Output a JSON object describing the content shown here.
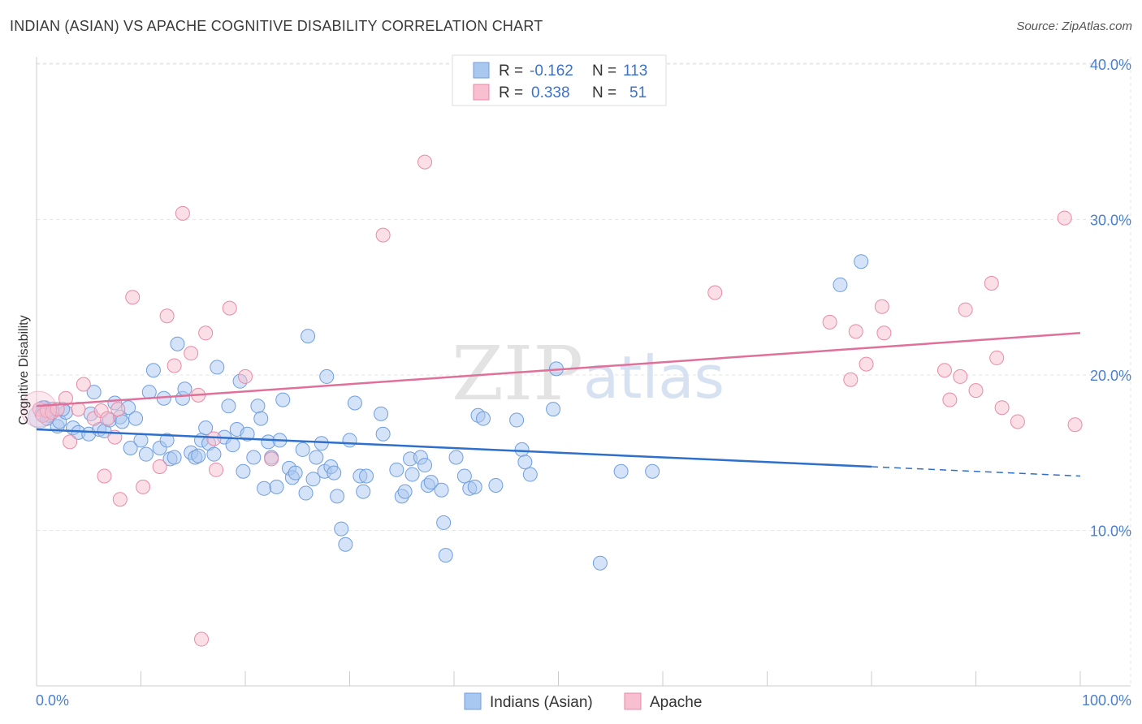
{
  "header": {
    "title": "INDIAN (ASIAN) VS APACHE COGNITIVE DISABILITY CORRELATION CHART",
    "source": "Source: ZipAtlas.com"
  },
  "watermark": {
    "zip": "ZIP",
    "atlas": "atlas"
  },
  "legend_top": {
    "rows": [
      {
        "r_label": "R =",
        "r_value": "-0.162",
        "n_label": "N =",
        "n_value": "113"
      },
      {
        "r_label": "R =",
        "r_value": "0.338",
        "n_label": "N =",
        "n_value": "51"
      }
    ]
  },
  "colors": {
    "blue_fill": "#a9c8f0",
    "blue_stroke": "#6f9ee0",
    "blue_line": "#2f6fcc",
    "pink_fill": "#f7bfd0",
    "pink_stroke": "#e88aa8",
    "pink_line": "#e0709a",
    "grid": "#e6e6e6",
    "tick_label": "#4a7fd0"
  },
  "chart_data": {
    "type": "scatter",
    "title": "INDIAN (ASIAN) VS APACHE COGNITIVE DISABILITY CORRELATION CHART",
    "xlabel": "",
    "ylabel": "Cognitive Disability",
    "xlim": [
      0,
      100
    ],
    "ylim": [
      0,
      42
    ],
    "x_tick_labels": [
      "0.0%",
      "100.0%"
    ],
    "y_ticks": [
      10,
      20,
      30,
      40
    ],
    "y_tick_labels": [
      "10.0%",
      "20.0%",
      "30.0%",
      "40.0%"
    ],
    "grid": true,
    "legend": "top-center",
    "series": [
      {
        "name": "Indians (Asian)",
        "r": -0.162,
        "n": 113,
        "trend": {
          "x0": 0,
          "y0": 16.5,
          "x1": 80,
          "y1": 14.1,
          "dash_x1": 100,
          "dash_y1": 13.5
        },
        "points": [
          [
            0.5,
            17.5
          ],
          [
            0.8,
            17.9
          ],
          [
            1.2,
            17.4
          ],
          [
            1.5,
            17.8
          ],
          [
            2.0,
            16.7
          ],
          [
            2.2,
            17.0
          ],
          [
            2.8,
            17.6
          ],
          [
            3.5,
            16.6
          ],
          [
            4.0,
            16.3
          ],
          [
            5.0,
            16.2
          ],
          [
            5.2,
            17.5
          ],
          [
            5.5,
            18.9
          ],
          [
            6.0,
            16.5
          ],
          [
            6.5,
            16.4
          ],
          [
            7.0,
            17.1
          ],
          [
            7.5,
            18.2
          ],
          [
            8.0,
            17.3
          ],
          [
            8.2,
            17.0
          ],
          [
            8.8,
            17.9
          ],
          [
            9.0,
            15.3
          ],
          [
            9.5,
            17.2
          ],
          [
            10.0,
            15.8
          ],
          [
            10.5,
            14.9
          ],
          [
            10.8,
            18.9
          ],
          [
            11.2,
            20.3
          ],
          [
            11.8,
            15.3
          ],
          [
            12.2,
            18.5
          ],
          [
            12.5,
            15.8
          ],
          [
            12.8,
            14.6
          ],
          [
            13.2,
            14.7
          ],
          [
            13.5,
            22.0
          ],
          [
            14.0,
            18.5
          ],
          [
            14.2,
            19.1
          ],
          [
            14.8,
            15.0
          ],
          [
            15.2,
            14.7
          ],
          [
            15.5,
            14.8
          ],
          [
            15.8,
            15.8
          ],
          [
            16.2,
            16.6
          ],
          [
            16.5,
            15.6
          ],
          [
            17.0,
            14.9
          ],
          [
            17.3,
            20.5
          ],
          [
            18.0,
            16.0
          ],
          [
            18.4,
            18.0
          ],
          [
            18.8,
            15.5
          ],
          [
            19.2,
            16.5
          ],
          [
            19.5,
            19.6
          ],
          [
            19.8,
            13.8
          ],
          [
            20.2,
            16.2
          ],
          [
            20.8,
            14.7
          ],
          [
            21.2,
            18.0
          ],
          [
            21.5,
            17.2
          ],
          [
            21.8,
            12.7
          ],
          [
            22.2,
            15.7
          ],
          [
            22.5,
            14.7
          ],
          [
            23.0,
            12.8
          ],
          [
            23.3,
            15.8
          ],
          [
            23.6,
            18.4
          ],
          [
            24.2,
            14.0
          ],
          [
            24.5,
            13.4
          ],
          [
            24.8,
            13.7
          ],
          [
            25.5,
            15.2
          ],
          [
            25.8,
            12.4
          ],
          [
            26.0,
            22.5
          ],
          [
            26.5,
            13.3
          ],
          [
            26.8,
            14.7
          ],
          [
            27.3,
            15.6
          ],
          [
            27.6,
            13.8
          ],
          [
            27.8,
            19.9
          ],
          [
            28.2,
            14.1
          ],
          [
            28.5,
            13.7
          ],
          [
            28.8,
            12.2
          ],
          [
            29.2,
            10.1
          ],
          [
            29.6,
            9.1
          ],
          [
            30.0,
            15.8
          ],
          [
            30.5,
            18.2
          ],
          [
            31.0,
            13.5
          ],
          [
            31.3,
            12.5
          ],
          [
            31.6,
            13.5
          ],
          [
            33.0,
            17.5
          ],
          [
            33.2,
            16.2
          ],
          [
            34.5,
            13.9
          ],
          [
            35.0,
            12.2
          ],
          [
            35.3,
            12.5
          ],
          [
            35.8,
            14.6
          ],
          [
            36.0,
            13.6
          ],
          [
            36.8,
            14.7
          ],
          [
            37.2,
            14.2
          ],
          [
            37.5,
            12.9
          ],
          [
            37.8,
            13.1
          ],
          [
            38.8,
            12.6
          ],
          [
            39.0,
            10.5
          ],
          [
            39.2,
            8.4
          ],
          [
            40.2,
            14.7
          ],
          [
            41.0,
            13.5
          ],
          [
            41.5,
            12.7
          ],
          [
            42.0,
            12.8
          ],
          [
            42.3,
            17.4
          ],
          [
            42.8,
            17.2
          ],
          [
            44.0,
            12.9
          ],
          [
            46.0,
            17.1
          ],
          [
            46.5,
            15.2
          ],
          [
            46.8,
            14.4
          ],
          [
            47.3,
            13.6
          ],
          [
            49.5,
            17.8
          ],
          [
            49.8,
            20.4
          ],
          [
            54.0,
            7.9
          ],
          [
            56.0,
            13.8
          ],
          [
            59.0,
            13.8
          ],
          [
            77.0,
            25.8
          ],
          [
            79.0,
            27.3
          ],
          [
            0.6,
            17.9
          ],
          [
            1.0,
            17.2
          ],
          [
            2.5,
            17.8
          ]
        ]
      },
      {
        "name": "Apache",
        "r": 0.338,
        "n": 51,
        "trend": {
          "x0": 0,
          "y0": 18.0,
          "x1": 100,
          "y1": 22.7
        },
        "points": [
          [
            0.3,
            17.8
          ],
          [
            0.6,
            17.4
          ],
          [
            1.0,
            17.7
          ],
          [
            1.5,
            17.6
          ],
          [
            2.0,
            17.8
          ],
          [
            2.8,
            18.5
          ],
          [
            3.2,
            15.7
          ],
          [
            4.0,
            17.8
          ],
          [
            4.5,
            19.4
          ],
          [
            5.5,
            17.2
          ],
          [
            6.2,
            17.7
          ],
          [
            6.5,
            13.5
          ],
          [
            6.8,
            17.2
          ],
          [
            7.5,
            16.0
          ],
          [
            7.8,
            17.8
          ],
          [
            8.0,
            12.0
          ],
          [
            9.2,
            25.0
          ],
          [
            10.2,
            12.8
          ],
          [
            11.8,
            14.1
          ],
          [
            12.5,
            23.8
          ],
          [
            13.2,
            20.6
          ],
          [
            14.0,
            30.4
          ],
          [
            14.8,
            21.4
          ],
          [
            15.5,
            18.7
          ],
          [
            15.8,
            3.0
          ],
          [
            16.2,
            22.7
          ],
          [
            17.0,
            15.9
          ],
          [
            17.2,
            13.9
          ],
          [
            18.5,
            24.3
          ],
          [
            20.0,
            19.9
          ],
          [
            22.5,
            14.6
          ],
          [
            33.2,
            29.0
          ],
          [
            37.2,
            33.7
          ],
          [
            65.0,
            25.3
          ],
          [
            76.0,
            23.4
          ],
          [
            78.0,
            19.7
          ],
          [
            78.5,
            22.8
          ],
          [
            79.5,
            20.7
          ],
          [
            81.0,
            24.4
          ],
          [
            81.2,
            22.7
          ],
          [
            87.0,
            20.3
          ],
          [
            87.5,
            18.4
          ],
          [
            88.5,
            19.9
          ],
          [
            89.0,
            24.2
          ],
          [
            90.0,
            19.0
          ],
          [
            91.5,
            25.9
          ],
          [
            92.0,
            21.1
          ],
          [
            92.5,
            17.9
          ],
          [
            94.0,
            17.0
          ],
          [
            98.5,
            30.1
          ],
          [
            99.5,
            16.8
          ]
        ]
      }
    ]
  }
}
